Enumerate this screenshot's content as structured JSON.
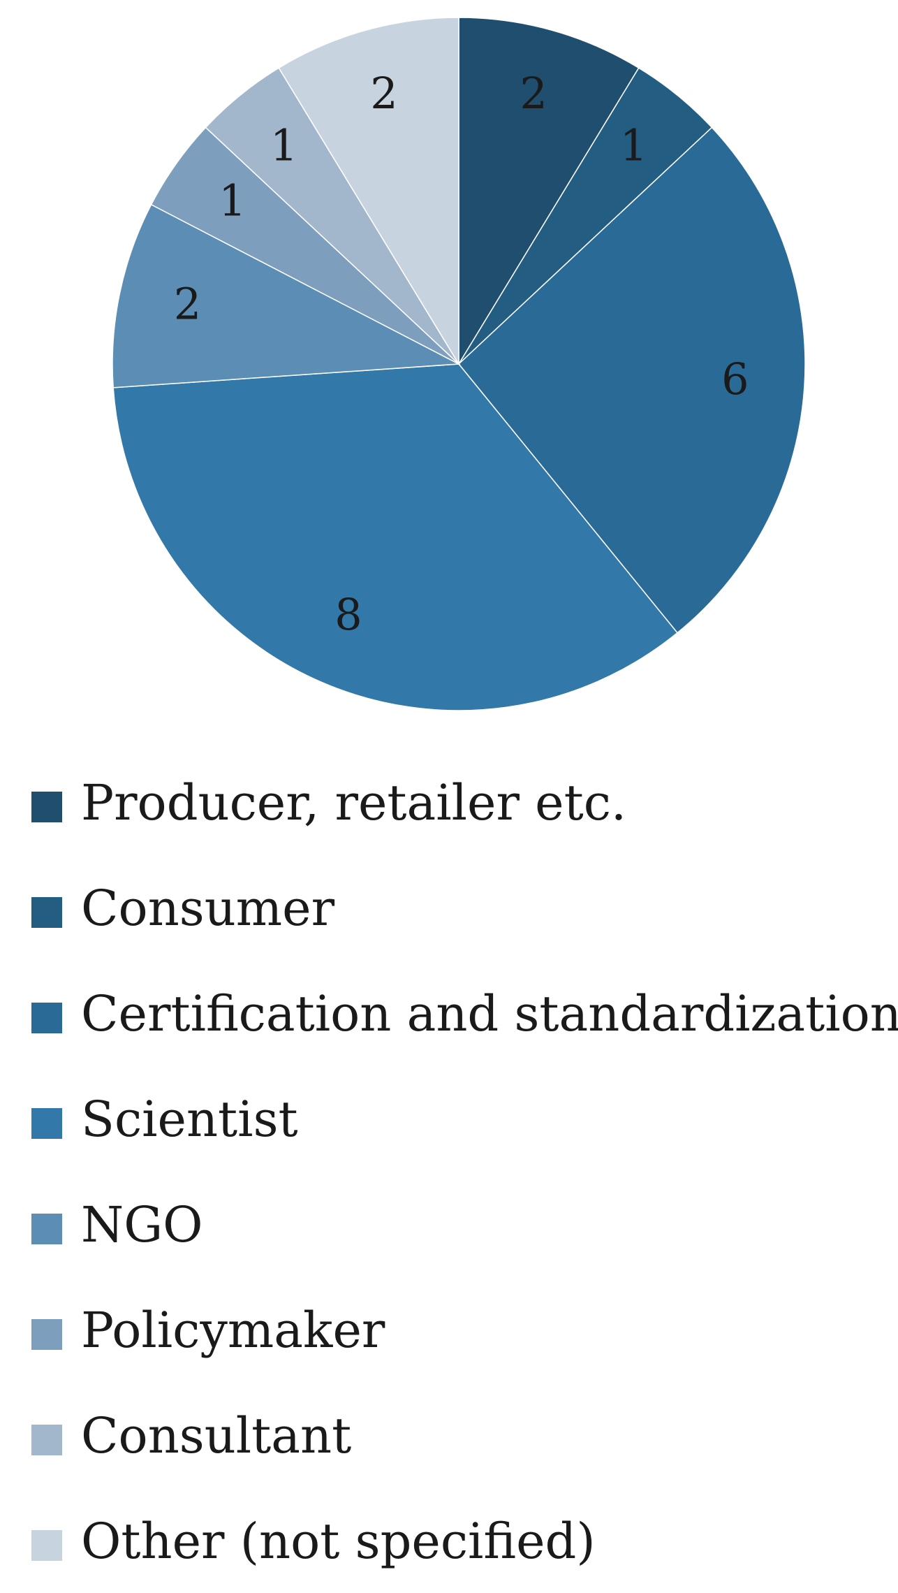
{
  "chart_data": {
    "type": "pie",
    "categories": [
      "Producer, retailer etc.",
      "Consumer",
      "Certification and standardization",
      "Scientist",
      "NGO",
      "Policymaker",
      "Consultant",
      "Other (not specified)"
    ],
    "values": [
      2,
      1,
      6,
      8,
      2,
      1,
      1,
      2
    ],
    "colors": [
      "#1f4e6e",
      "#245d82",
      "#2a6a96",
      "#3278a8",
      "#5b8db5",
      "#7d9fbd",
      "#a3b7cc",
      "#c8d3e0"
    ]
  }
}
